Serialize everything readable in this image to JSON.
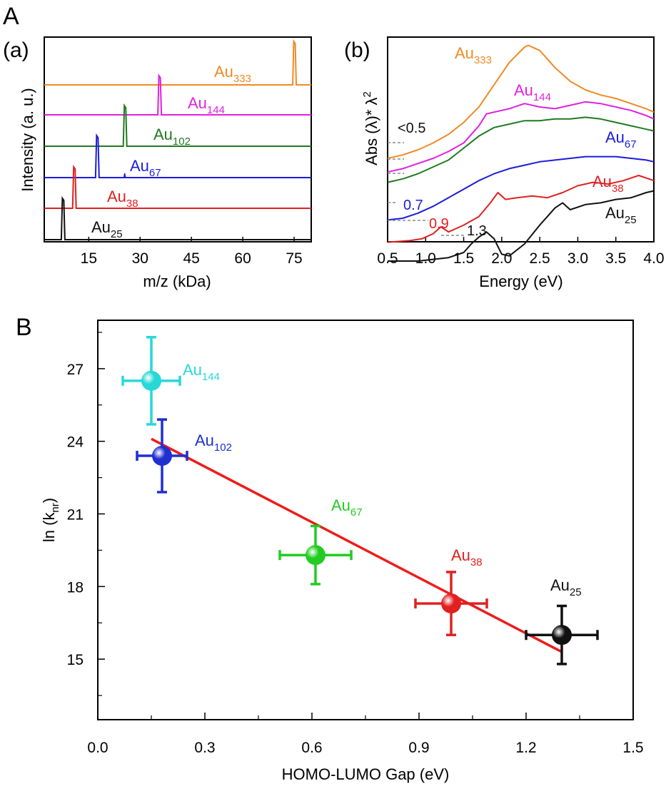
{
  "figure": {
    "label_A": "A",
    "label_B": "B",
    "label_a": "(a)",
    "label_b": "(b)"
  },
  "colors": {
    "Au333": "#f08a24",
    "Au144_a": "#e020e0",
    "Au102_a": "#1f7a1f",
    "Au67_a": "#1c1cdc",
    "Au38": "#e02020",
    "Au25": "#111111",
    "Au144_B": "#27d8d8",
    "Au102_B": "#1f2fd0",
    "Au67_B": "#22cc22",
    "fit": "#ee1c1c",
    "gap_dash": "#8a8a8a"
  },
  "chart_data": [
    {
      "id": "a",
      "type": "line",
      "xlabel": "m/z (kDa)",
      "ylabel": "Intensity (a. u.)",
      "xlim": [
        2,
        80
      ],
      "xticks": [
        15,
        30,
        45,
        60,
        75
      ],
      "tick_labels": [
        "15",
        "30",
        "45",
        "60",
        "75"
      ],
      "series": [
        {
          "label_base": "Au",
          "label_sub": "333",
          "peak": 75,
          "color_key": "Au333"
        },
        {
          "label_base": "Au",
          "label_sub": "144",
          "peak": 35.6,
          "color_key": "Au144_a"
        },
        {
          "label_base": "Au",
          "label_sub": "102",
          "peak": 25.5,
          "color_key": "Au102_a"
        },
        {
          "label_base": "Au",
          "label_sub": "67",
          "peak": 17.4,
          "color_key": "Au67_a"
        },
        {
          "label_base": "Au",
          "label_sub": "38",
          "peak": 10.7,
          "color_key": "Au38"
        },
        {
          "label_base": "Au",
          "label_sub": "25",
          "peak": 7.4,
          "color_key": "Au25"
        }
      ]
    },
    {
      "id": "b",
      "type": "line",
      "xlabel": "Energy (eV)",
      "ylabel_main": "Abs (λ)* λ",
      "ylabel_sup": "2",
      "xlim": [
        0.5,
        4.0
      ],
      "xticks": [
        0.5,
        1.0,
        1.5,
        2.0,
        2.5,
        3.0,
        3.5,
        4.0
      ],
      "tick_labels": [
        "0.5",
        "1.0",
        "1.5",
        "2.0",
        "2.5",
        "3.0",
        "3.5",
        "4.0"
      ],
      "series": [
        {
          "label_base": "Au",
          "label_sub": "333",
          "color_key": "Au333",
          "x": [
            0.5,
            0.7,
            0.9,
            1.1,
            1.3,
            1.5,
            1.7,
            1.9,
            2.1,
            2.3,
            2.35,
            2.5,
            2.7,
            2.9,
            3.1,
            3.3,
            3.5,
            3.7,
            3.9,
            4.0
          ],
          "y": [
            2.0,
            2.2,
            2.5,
            2.9,
            3.4,
            4.1,
            5.0,
            6.3,
            7.6,
            8.5,
            8.6,
            8.3,
            7.3,
            6.5,
            6.0,
            5.7,
            5.5,
            5.2,
            4.9,
            4.7
          ]
        },
        {
          "label_base": "Au",
          "label_sub": "144",
          "color_key": "Au144_a",
          "x": [
            0.5,
            0.7,
            0.9,
            1.1,
            1.3,
            1.5,
            1.7,
            1.8,
            1.9,
            2.1,
            2.3,
            2.5,
            2.7,
            2.9,
            3.1,
            3.3,
            3.5,
            3.7,
            3.9,
            4.0
          ],
          "y": [
            1.2,
            1.4,
            1.7,
            2.0,
            2.4,
            2.9,
            3.9,
            4.6,
            4.7,
            4.9,
            5.2,
            5.0,
            4.9,
            5.1,
            5.3,
            5.2,
            5.0,
            4.8,
            4.5,
            4.3
          ]
        },
        {
          "label_base": "Au",
          "label_sub": "102",
          "color_key": "Au102_a",
          "x": [
            0.5,
            0.7,
            0.9,
            1.1,
            1.3,
            1.5,
            1.7,
            1.9,
            2.1,
            2.3,
            2.5,
            2.7,
            2.9,
            3.1,
            3.3,
            3.5,
            3.7,
            3.9,
            4.0
          ],
          "y": [
            0.6,
            0.8,
            1.1,
            1.5,
            1.9,
            2.6,
            3.3,
            3.8,
            4.0,
            4.2,
            4.2,
            4.3,
            4.3,
            4.4,
            4.3,
            4.1,
            3.9,
            3.7,
            3.6
          ]
        },
        {
          "label_base": "Au",
          "label_sub": "67",
          "color_key": "Au67_a",
          "x": [
            0.5,
            0.7,
            0.9,
            1.1,
            1.3,
            1.5,
            1.7,
            1.9,
            2.1,
            2.3,
            2.5,
            2.7,
            2.9,
            3.1,
            3.3,
            3.5,
            3.7,
            3.9,
            4.0
          ],
          "y": [
            -1.6,
            -1.5,
            -1.2,
            -0.8,
            -0.3,
            0.2,
            0.7,
            1.1,
            1.4,
            1.6,
            1.8,
            1.9,
            2.0,
            2.1,
            2.1,
            2.1,
            2.0,
            1.9,
            1.8
          ]
        },
        {
          "label_base": "Au",
          "label_sub": "38",
          "color_key": "Au38",
          "x": [
            0.5,
            0.8,
            0.95,
            1.1,
            1.2,
            1.3,
            1.5,
            1.7,
            1.85,
            1.95,
            2.05,
            2.2,
            2.4,
            2.6,
            2.8,
            3.0,
            3.2,
            3.4,
            3.6,
            3.8,
            4.0
          ],
          "y": [
            -2.9,
            -2.8,
            -2.7,
            -2.4,
            -2.0,
            -2.3,
            -1.9,
            -1.4,
            -0.6,
            0.0,
            -0.4,
            -0.3,
            -0.2,
            -0.3,
            0.0,
            0.4,
            0.6,
            0.5,
            0.7,
            1.0,
            0.7
          ]
        },
        {
          "label_base": "Au",
          "label_sub": "25",
          "color_key": "Au25",
          "x": [
            0.5,
            0.9,
            1.1,
            1.3,
            1.5,
            1.6,
            1.7,
            1.8,
            1.9,
            2.0,
            2.1,
            2.3,
            2.5,
            2.7,
            2.8,
            2.9,
            3.1,
            3.3,
            3.5,
            3.7,
            3.9,
            4.0
          ],
          "y": [
            -4.0,
            -4.0,
            -3.9,
            -3.8,
            -3.5,
            -3.0,
            -2.6,
            -2.3,
            -2.7,
            -3.6,
            -3.7,
            -3.0,
            -1.9,
            -0.9,
            -0.6,
            -1.0,
            -0.7,
            -0.6,
            -0.4,
            -0.3,
            0.0,
            0.1
          ]
        }
      ],
      "gap_annotations": [
        {
          "text": "<0.5",
          "color_key": "Au25"
        },
        {
          "text": "0.7",
          "color_key": "Au67_a"
        },
        {
          "text": "0.9",
          "color_key": "Au38"
        },
        {
          "text": "1.3",
          "color_key": "Au25"
        }
      ]
    },
    {
      "id": "B",
      "type": "scatter",
      "xlabel": "HOMO-LUMO Gap (eV)",
      "ylabel_main": "ln (k",
      "ylabel_sub": "nr",
      "ylabel_end": ")",
      "xlim": [
        0.0,
        1.5
      ],
      "ylim": [
        12.5,
        29.0
      ],
      "xticks": [
        0.0,
        0.3,
        0.6,
        0.9,
        1.2,
        1.5
      ],
      "x_tick_labels": [
        "0.0",
        "0.3",
        "0.6",
        "0.9",
        "1.2",
        "1.5"
      ],
      "yticks": [
        15,
        18,
        21,
        24,
        27
      ],
      "y_tick_labels": [
        "15",
        "18",
        "21",
        "24",
        "27"
      ],
      "points": [
        {
          "label_base": "Au",
          "label_sub": "144",
          "x": 0.15,
          "y": 26.5,
          "xerr": 0.08,
          "yerr": 1.8,
          "color_key": "Au144_B"
        },
        {
          "label_base": "Au",
          "label_sub": "102",
          "x": 0.18,
          "y": 23.4,
          "xerr": 0.07,
          "yerr": 1.5,
          "color_key": "Au102_B"
        },
        {
          "label_base": "Au",
          "label_sub": "67",
          "x": 0.61,
          "y": 19.3,
          "xerr": 0.1,
          "yerr": 1.2,
          "color_key": "Au67_B"
        },
        {
          "label_base": "Au",
          "label_sub": "38",
          "x": 0.99,
          "y": 17.3,
          "xerr": 0.1,
          "yerr": 1.3,
          "color_key": "Au38"
        },
        {
          "label_base": "Au",
          "label_sub": "25",
          "x": 1.3,
          "y": 16.0,
          "xerr": 0.1,
          "yerr": 1.2,
          "color_key": "Au25"
        }
      ],
      "fit_line": {
        "x": [
          0.15,
          1.3
        ],
        "y": [
          24.1,
          15.3
        ],
        "color_key": "fit"
      }
    }
  ]
}
